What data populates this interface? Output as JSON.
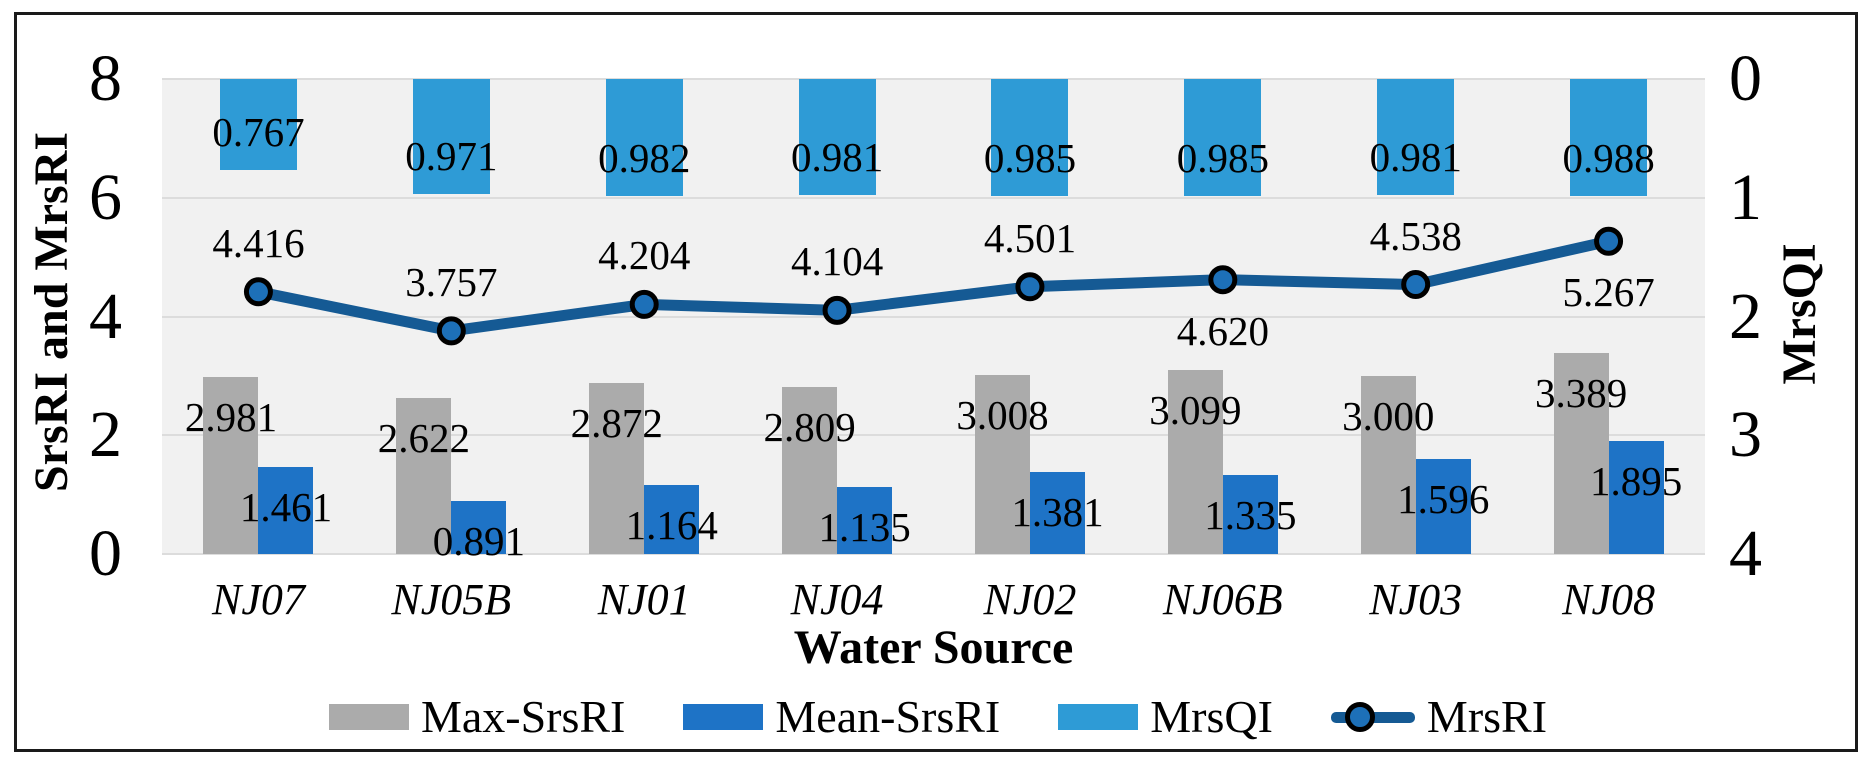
{
  "chart_data": {
    "type": "bar",
    "subtype": "combo-bar-line-dual-axis",
    "categories": [
      "NJ07",
      "NJ05B",
      "NJ01",
      "NJ04",
      "NJ02",
      "NJ06B",
      "NJ03",
      "NJ08"
    ],
    "series": [
      {
        "name": "Max-SrsRI",
        "type": "bar",
        "axis": "left",
        "color": "#ababab",
        "values": [
          2.981,
          2.622,
          2.872,
          2.809,
          3.008,
          3.099,
          3.0,
          3.389
        ],
        "labels": [
          "2.981",
          "2.622",
          "2.872",
          "2.809",
          "3.008",
          "3.099",
          "3.000",
          "3.389"
        ]
      },
      {
        "name": "Mean-SrsRI",
        "type": "bar",
        "axis": "left",
        "color": "#1e73c6",
        "values": [
          1.461,
          0.891,
          1.164,
          1.135,
          1.381,
          1.335,
          1.596,
          1.895
        ],
        "labels": [
          "1.461",
          "0.891",
          "1.164",
          "1.135",
          "1.381",
          "1.335",
          "1.596",
          "1.895"
        ]
      },
      {
        "name": "MrsQI",
        "type": "bar",
        "axis": "right",
        "color": "#2e9bd6",
        "values": [
          0.767,
          0.971,
          0.982,
          0.981,
          0.985,
          0.985,
          0.981,
          0.988
        ],
        "labels": [
          "0.767",
          "0.971",
          "0.982",
          "0.981",
          "0.985",
          "0.985",
          "0.981",
          "0.988"
        ]
      },
      {
        "name": "MrsRI",
        "type": "line",
        "axis": "left",
        "color": "#155a94",
        "marker_fill": "#1d70b8",
        "marker_stroke": "#000000",
        "values": [
          4.416,
          3.757,
          4.204,
          4.104,
          4.501,
          4.62,
          4.538,
          5.267
        ],
        "labels": [
          "4.416",
          "3.757",
          "4.204",
          "4.104",
          "4.501",
          "4.620",
          "4.538",
          "5.267"
        ],
        "label_positions": [
          "above",
          "above",
          "above",
          "above",
          "above",
          "below",
          "above",
          "below"
        ]
      }
    ],
    "left_axis": {
      "title": "SrsRI and MrsRI",
      "min": 0,
      "max": 8,
      "ticks": [
        8,
        6,
        4,
        2,
        0
      ]
    },
    "right_axis": {
      "title": "MrsQI",
      "min": 0,
      "max": 4,
      "ticks": [
        0,
        1,
        2,
        3,
        4
      ],
      "inverted": true
    },
    "x_axis": {
      "title": "Water Source"
    },
    "legend_position": "bottom",
    "grid": true,
    "plot_background": "#f1f1f1",
    "gridline_color": "#dcdcdc"
  }
}
